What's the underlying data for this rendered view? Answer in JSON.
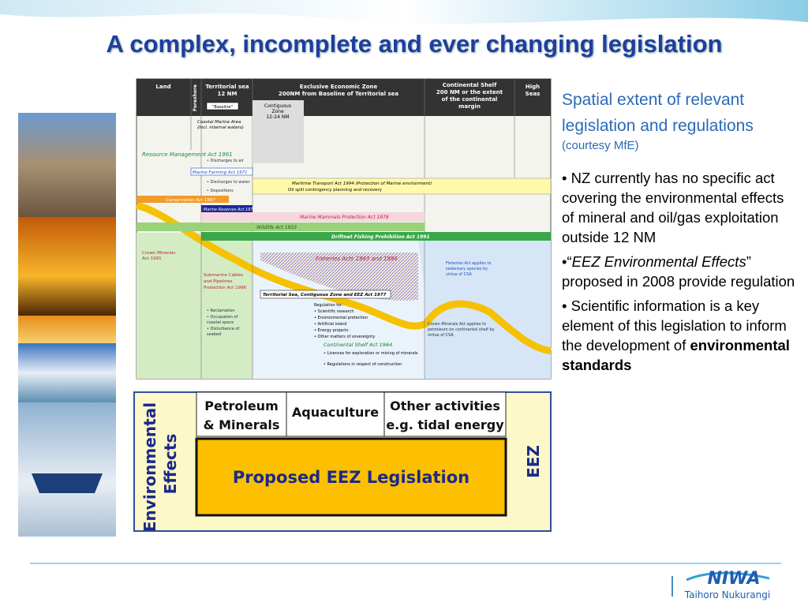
{
  "title": "A complex, incomplete and ever changing legislation",
  "diagram": {
    "headers": {
      "land": "Land",
      "foreshore": "Foreshore",
      "territorial": [
        "Territorial sea",
        "12 NM"
      ],
      "eez": [
        "Exclusive Economic Zone",
        "200NM from Baseline of Territorial sea"
      ],
      "shelf": [
        "Continental Shelf",
        "200 NM or the extent",
        "of the continental",
        "margin"
      ],
      "high_seas": [
        "High",
        "Seas"
      ]
    },
    "baseline": "\"Baseline\"",
    "coastal": [
      "Coastal Marine Area",
      "(Incl. internal waters)"
    ],
    "contiguous": [
      "Contiguous",
      "Zone",
      "12-24 NM"
    ],
    "acts": {
      "rma": "Resource Management Act 1991",
      "farming": "Marine Farming Act 1971",
      "conservation": "Conservation Act 1987",
      "reserves": "Marine Reserves Act 1971",
      "transport": "Maritime Transport Act 1994 (Protection of Marine environment)",
      "oil": "Oil spill contingency planning and recovery",
      "mammals": "Marine Mammals Protection Act 1978",
      "wildlife": "Wildlife Act 1953",
      "driftnet": "Driftnet Fishing Prohibition Act 1991",
      "fisheries": "Fisheries Acts 1983 and 1996",
      "tszeez": "Territorial Sea, Contiguous Zone and EEZ Act 1977",
      "shelf_act": "Continental Shelf Act 1964",
      "crown": [
        "Crown Minerals",
        "Act 1991"
      ]
    },
    "rma_items": [
      "• Discharges to air",
      "• Discharges to water",
      "• Depositions"
    ],
    "cable": [
      "Submarine Cables",
      "and Pipelines",
      "Protection Act 1996"
    ],
    "rma_lower": [
      "• Reclamation",
      "• Occupation of",
      "  coastal space",
      "• Disturbance of",
      "  seabed"
    ],
    "regulation": [
      "Regulation for:",
      "• Scientific research",
      "• Environmental protection",
      "• Artificial island",
      "• Energy projects",
      "• Other matters of sovereignty"
    ],
    "shelf_items": [
      "• Licences for exploration or mining of minerals",
      "• Regulations in respect of construction"
    ],
    "fish_note": [
      "Fisheries Act applies to",
      "sedentary species by",
      "virtue of CSA"
    ],
    "crown_note": [
      "Crown Minerals Act applies to",
      "petroleum on continental shelf by",
      "virtue of CSA"
    ]
  },
  "boxes": {
    "petroleum": [
      "Petroleum",
      "& Minerals"
    ],
    "aquaculture": "Aquaculture",
    "other": [
      "Other activities",
      "e.g. tidal energy"
    ],
    "proposed": "Proposed EEZ Legislation",
    "env": [
      "Environmental",
      "Effects"
    ],
    "eez": "EEZ"
  },
  "side": {
    "heading": "Spatial extent of relevant legislation and regulations",
    "courtesy": "(courtesy MfE)",
    "bullet1": "• NZ currently has no specific act covering  the environmental effects of mineral and oil/gas exploitation outside 12 NM",
    "bullet2": {
      "open": "•“",
      "italic": "EEZ Environmental Effects",
      "rest": "” proposed in 2008 provide regulation"
    },
    "bullet3": {
      "text": "• Scientific information is a key element of this legislation to inform the development of ",
      "bold": "environmental standards"
    }
  },
  "logo": {
    "name": "NIWA",
    "sub": "Taihoro Nukurangi"
  }
}
